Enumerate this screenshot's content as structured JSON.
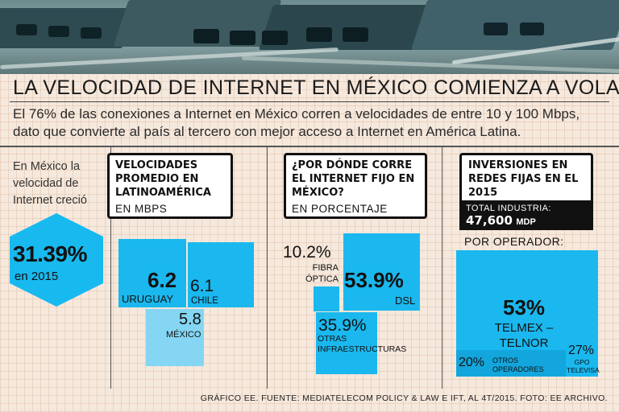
{
  "title": "LA VELOCIDAD DE INTERNET EN MÉXICO COMIENZA A VOLAR",
  "subtitle": "El 76% de las conexiones a Internet en México corren a velocidades de entre 10 y 100 Mbps, dato que convierte al país al tercero con mejor acceso a Internet en América Latina.",
  "growth": {
    "text": "En México la velocidad de Internet creció",
    "value": "31.39%",
    "year": "en 2015"
  },
  "footer": "GRÁFICO EE. FUENTE: MEDIATELECOM POLICY & LAW E IFT, AL 4T/2015. FOTO: EE ARCHIVO.",
  "colors": {
    "accent": "#1ab8ee",
    "accent_light": "#84d6f3",
    "dark": "#111111",
    "paper": "#f5e8dc"
  },
  "chart_data": [
    {
      "type": "treemap",
      "title": "VELOCIDADES PROMEDIO EN LATINOAMÉRICA",
      "subtitle": "EN MBPS",
      "unit": "Mbps",
      "categories": [
        "URUGUAY",
        "CHILE",
        "MÉXICO"
      ],
      "values": [
        6.2,
        6.1,
        5.8
      ],
      "value_labels": [
        "6.2",
        "6.1",
        "5.8"
      ]
    },
    {
      "type": "treemap",
      "title": "¿POR DÓNDE CORRE EL INTERNET FIJO EN MÉXICO?",
      "subtitle": "EN PORCENTAJE",
      "unit": "%",
      "categories": [
        "DSL",
        "OTRAS INFRAESTRUCTURAS",
        "FIBRA ÓPTICA"
      ],
      "values": [
        53.9,
        35.9,
        10.2
      ],
      "value_labels": [
        "53.9%",
        "35.9%",
        "10.2%"
      ]
    },
    {
      "type": "treemap",
      "title": "INVERSIONES EN REDES FIJAS EN EL 2015",
      "total_label": "TOTAL INDUSTRIA:",
      "total_value": "47,600",
      "total_unit": "MDP",
      "subtitle": "POR OPERADOR:",
      "unit": "%",
      "categories": [
        "TELMEX –TELNOR",
        "GPO TELEVISA",
        "OTROS OPERADORES"
      ],
      "values": [
        53,
        27,
        20
      ],
      "value_labels": [
        "53%",
        "27%",
        "20%"
      ]
    }
  ]
}
